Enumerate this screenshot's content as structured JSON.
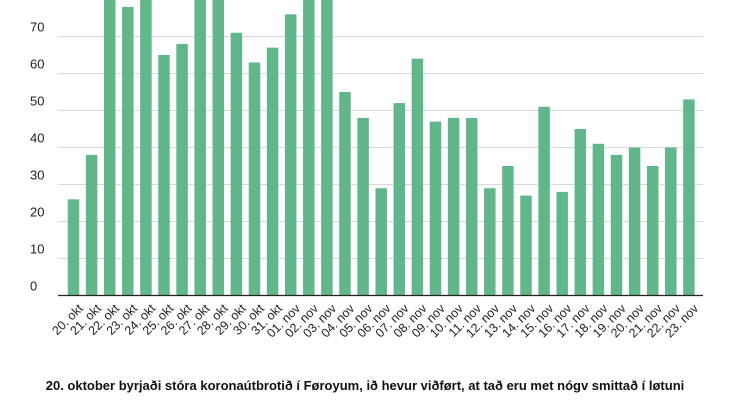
{
  "chart_data": {
    "type": "bar",
    "categories": [
      "20. okt",
      "21. okt",
      "22. okt",
      "23. okt",
      "24. okt",
      "25. okt",
      "26. okt",
      "27. okt",
      "28. okt",
      "29. okt",
      "30. okt",
      "31. okt",
      "01. nov",
      "02. nov",
      "03. nov",
      "04. nov",
      "05. nov",
      "06. nov",
      "07. nov",
      "08. nov",
      "09. nov",
      "10. nov",
      "11. nov",
      "12. nov",
      "13. nov",
      "14. nov",
      "15. nov",
      "16. nov",
      "17. nov",
      "18. nov",
      "19. nov",
      "20. nov",
      "21. nov",
      "22. nov",
      "23. nov"
    ],
    "values": [
      26,
      38,
      85,
      78,
      85,
      65,
      68,
      85,
      85,
      71,
      63,
      67,
      76,
      85,
      85,
      55,
      48,
      29,
      52,
      64,
      47,
      48,
      48,
      29,
      35,
      27,
      51,
      28,
      45,
      41,
      38,
      40,
      35,
      40,
      53
    ],
    "yticks": [
      0,
      10,
      20,
      30,
      40,
      50,
      60,
      70
    ],
    "ylim": [
      0,
      80
    ],
    "xlabel": "",
    "ylabel": "",
    "grid": true,
    "bar_color": "#62b78a"
  },
  "caption": "20. oktober byrjaði stóra koronaútbrotið í Føroyum, ið hevur viðført, at tað eru met nógv smittað í løtuni"
}
